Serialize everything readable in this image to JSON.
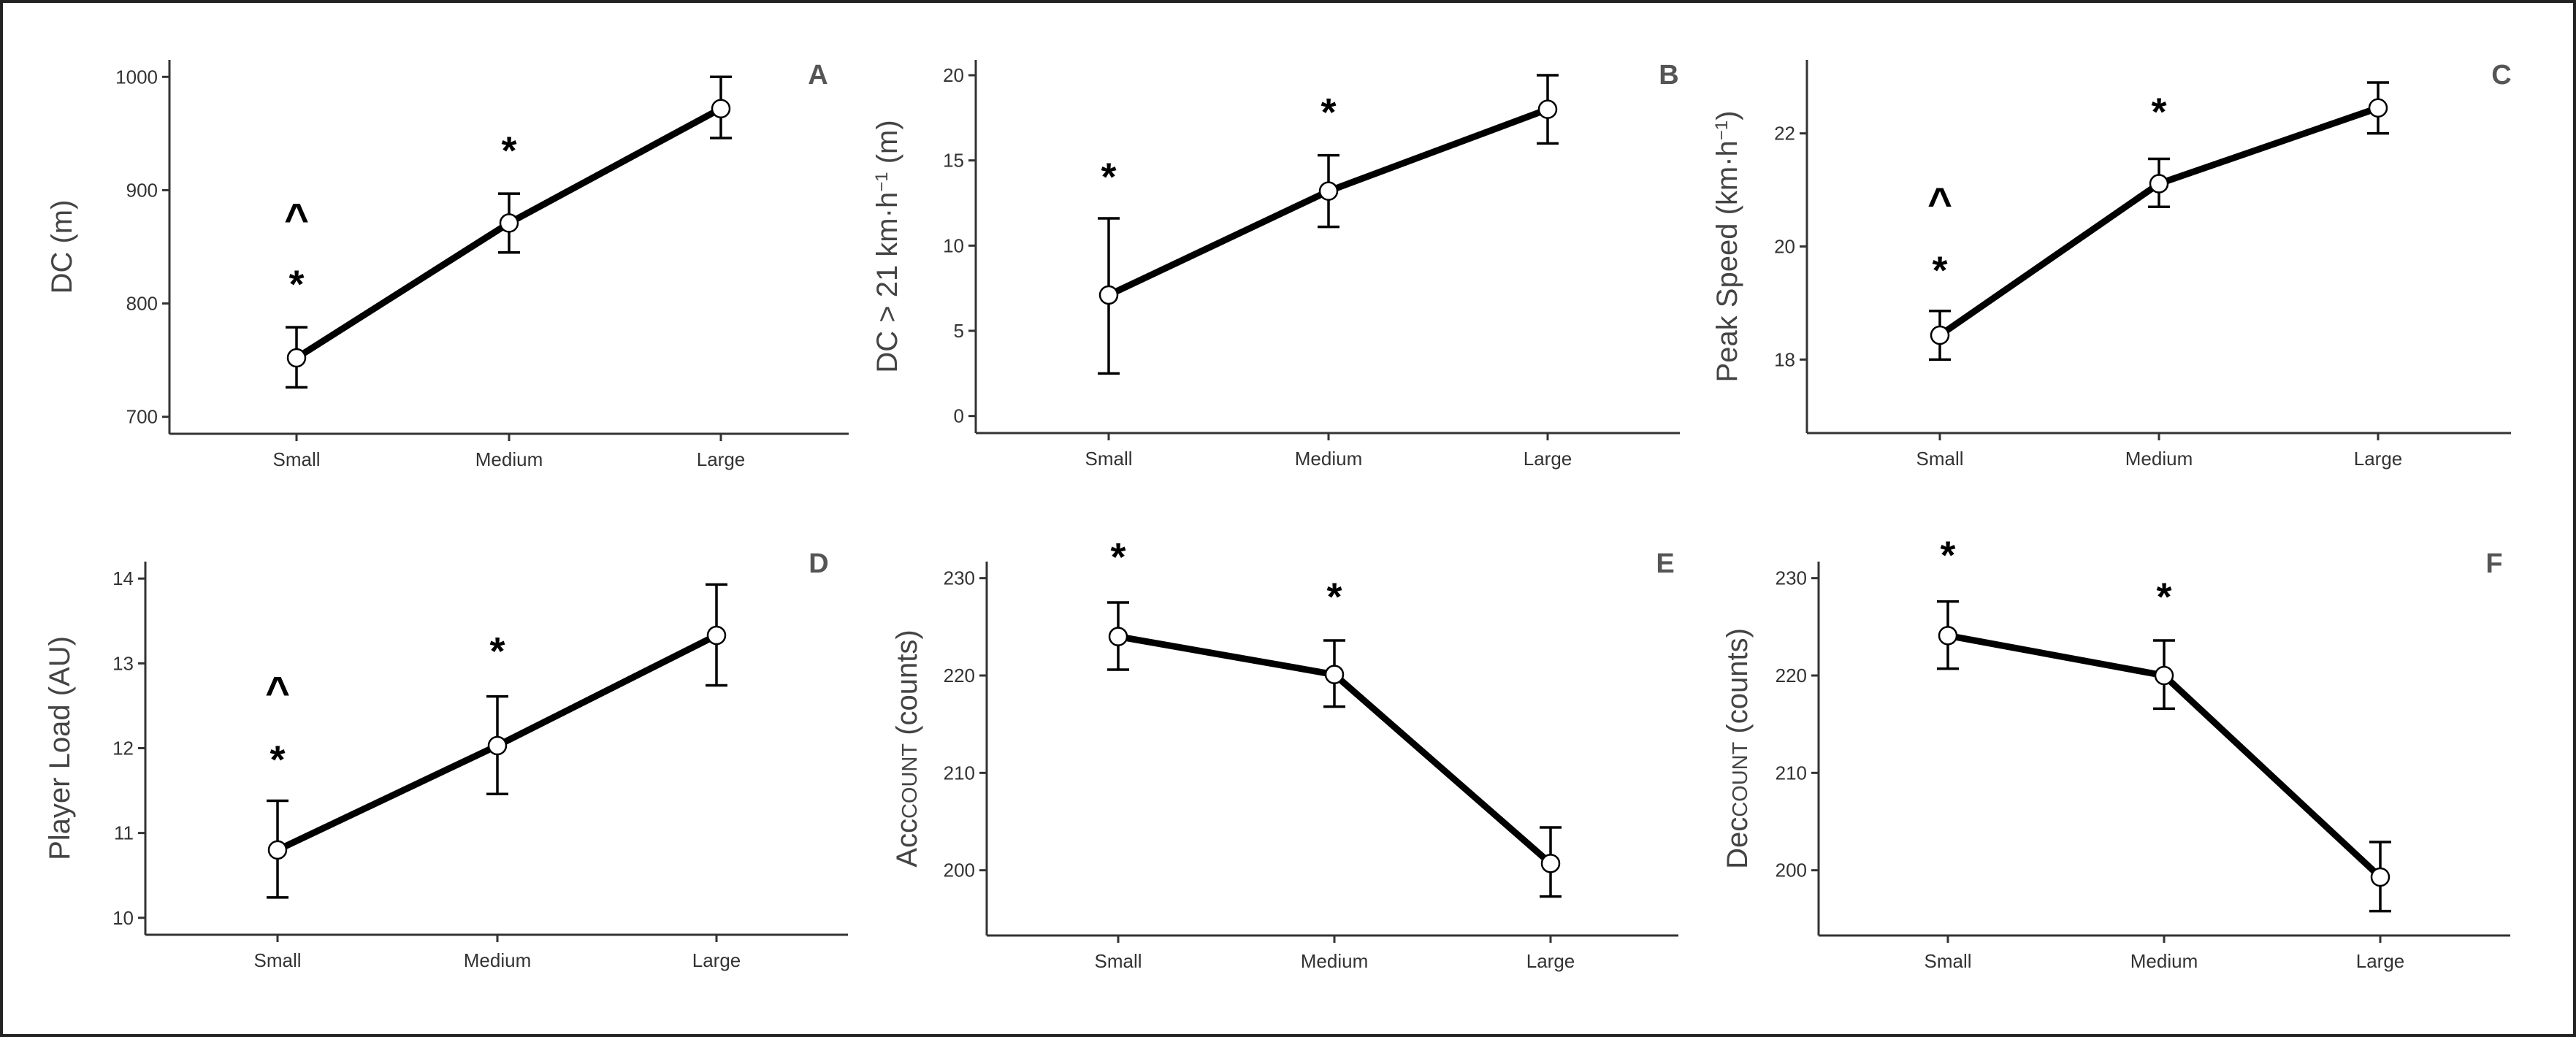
{
  "figure": {
    "panels_layout": "2 rows x 3 columns"
  },
  "chart_data": [
    {
      "panel": "A",
      "type": "line",
      "title": "",
      "xlabel": "",
      "ylabel": "DC (m)",
      "ylabel_parts": [
        {
          "text": "DC (m)",
          "smallcaps": false
        }
      ],
      "categories": [
        "Small",
        "Medium",
        "Large"
      ],
      "values": [
        752,
        871,
        972
      ],
      "error_low": [
        726,
        845,
        946
      ],
      "error_high": [
        779,
        897,
        1000
      ],
      "yticks": [
        700,
        800,
        900,
        1000
      ],
      "ylim": [
        685,
        1015
      ],
      "grid": false,
      "annotations": [
        {
          "category": "Small",
          "symbol": "^",
          "y": 879
        },
        {
          "category": "Small",
          "symbol": "*",
          "y": 818
        },
        {
          "category": "Medium",
          "symbol": "*",
          "y": 936
        }
      ]
    },
    {
      "panel": "B",
      "type": "line",
      "title": "",
      "xlabel": "",
      "ylabel": "DC > 21 km·h⁻¹ (m)",
      "ylabel_parts": [
        {
          "text": "DC > 21 km·h",
          "smallcaps": false
        },
        {
          "text": "-1",
          "sup": true
        },
        {
          "text": " (m)",
          "smallcaps": false
        }
      ],
      "categories": [
        "Small",
        "Medium",
        "Large"
      ],
      "values": [
        7.1,
        13.2,
        18.0
      ],
      "error_low": [
        2.5,
        11.1,
        16.0
      ],
      "error_high": [
        11.6,
        15.3,
        20.0
      ],
      "yticks": [
        0,
        5,
        10,
        15,
        20
      ],
      "ylim": [
        -1.0,
        20.9
      ],
      "grid": false,
      "annotations": [
        {
          "category": "Small",
          "symbol": "*",
          "y": 14.1
        },
        {
          "category": "Medium",
          "symbol": "*",
          "y": 17.9
        }
      ]
    },
    {
      "panel": "C",
      "type": "line",
      "title": "",
      "xlabel": "",
      "ylabel": "Peak Speed (km·h⁻¹)",
      "ylabel_parts": [
        {
          "text": "Peak Speed (km·h",
          "smallcaps": false
        },
        {
          "text": "-1",
          "sup": true
        },
        {
          "text": ")",
          "smallcaps": false
        }
      ],
      "categories": [
        "Small",
        "Medium",
        "Large"
      ],
      "values": [
        18.43,
        21.11,
        22.45
      ],
      "error_low": [
        18.0,
        20.7,
        22.0
      ],
      "error_high": [
        18.86,
        21.55,
        22.9
      ],
      "yticks": [
        18,
        20,
        22
      ],
      "ylim": [
        16.7,
        23.3
      ],
      "grid": false,
      "annotations": [
        {
          "category": "Small",
          "symbol": "^",
          "y": 20.85
        },
        {
          "category": "Small",
          "symbol": "*",
          "y": 19.6
        },
        {
          "category": "Medium",
          "symbol": "*",
          "y": 22.4
        }
      ]
    },
    {
      "panel": "D",
      "type": "line",
      "title": "",
      "xlabel": "",
      "ylabel": "Player Load (AU)",
      "ylabel_parts": [
        {
          "text": "Player Load (AU)",
          "smallcaps": false
        }
      ],
      "categories": [
        "Small",
        "Medium",
        "Large"
      ],
      "values": [
        10.8,
        12.03,
        13.33
      ],
      "error_low": [
        10.24,
        11.46,
        12.74
      ],
      "error_high": [
        11.38,
        12.61,
        13.93
      ],
      "yticks": [
        10,
        11,
        12,
        13,
        14
      ],
      "ylim": [
        9.8,
        14.2
      ],
      "grid": false,
      "annotations": [
        {
          "category": "Small",
          "symbol": "^",
          "y": 12.72
        },
        {
          "category": "Small",
          "symbol": "*",
          "y": 11.88
        },
        {
          "category": "Medium",
          "symbol": "*",
          "y": 13.16
        }
      ]
    },
    {
      "panel": "E",
      "type": "line",
      "title": "",
      "xlabel": "",
      "ylabel": "AccCOUNT (counts)",
      "ylabel_parts": [
        {
          "text": "Acc",
          "smallcaps": false
        },
        {
          "text": "COUNT",
          "smallcaps": true
        },
        {
          "text": " (counts)",
          "smallcaps": false
        }
      ],
      "categories": [
        "Small",
        "Medium",
        "Large"
      ],
      "values": [
        224.0,
        220.1,
        200.7
      ],
      "error_low": [
        220.6,
        216.8,
        197.3
      ],
      "error_high": [
        227.5,
        223.6,
        204.4
      ],
      "yticks": [
        200,
        210,
        220,
        230
      ],
      "ylim": [
        193.3,
        231.7
      ],
      "grid": false,
      "annotations": [
        {
          "category": "Small",
          "symbol": "*",
          "y": 232.3
        },
        {
          "category": "Medium",
          "symbol": "*",
          "y": 228.2
        }
      ]
    },
    {
      "panel": "F",
      "type": "line",
      "title": "",
      "xlabel": "",
      "ylabel": "DecCOUNT (counts)",
      "ylabel_parts": [
        {
          "text": "Dec",
          "smallcaps": false
        },
        {
          "text": "COUNT",
          "smallcaps": true
        },
        {
          "text": " (counts)",
          "smallcaps": false
        }
      ],
      "categories": [
        "Small",
        "Medium",
        "Large"
      ],
      "values": [
        224.1,
        220.0,
        199.3
      ],
      "error_low": [
        220.7,
        216.6,
        195.8
      ],
      "error_high": [
        227.6,
        223.6,
        202.9
      ],
      "yticks": [
        200,
        210,
        220,
        230
      ],
      "ylim": [
        193.3,
        231.7
      ],
      "grid": false,
      "annotations": [
        {
          "category": "Small",
          "symbol": "*",
          "y": 232.5
        },
        {
          "category": "Medium",
          "symbol": "*",
          "y": 228.2
        }
      ]
    }
  ]
}
